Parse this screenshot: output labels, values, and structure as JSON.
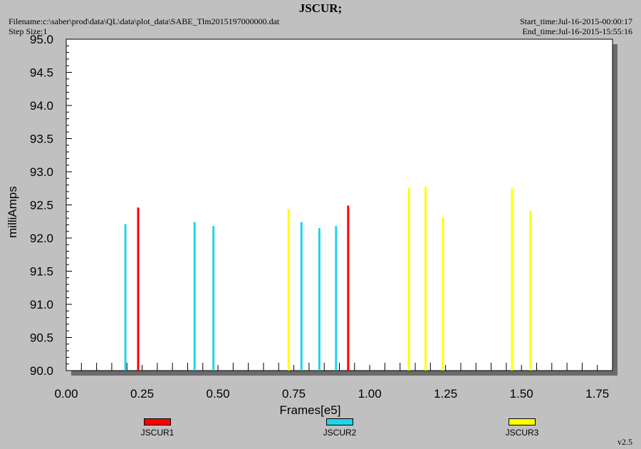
{
  "header": {
    "title": "JSCUR;",
    "filename": "Filename:c:\\saber\\prod\\data\\QL\\data\\plot_data\\SABE_Tlm2015197000000.dat",
    "step_size": "Step Size:1",
    "start_time": "Start_time:Jul-16-2015-00:00:17",
    "end_time": "End_time:Jul-16-2015-15:55:16"
  },
  "version": "v2.5",
  "chart_data": {
    "type": "bar",
    "title": "JSCUR;",
    "xlabel": "Frames[e5]",
    "ylabel": "milliAmps",
    "xlim": [
      0.0,
      1.8
    ],
    "ylim": [
      90.0,
      95.0
    ],
    "x_ticks": [
      "0.00",
      "0.25",
      "0.50",
      "0.75",
      "1.00",
      "1.25",
      "1.50",
      "1.75"
    ],
    "y_ticks": [
      "90.0",
      "90.5",
      "91.0",
      "91.5",
      "92.0",
      "92.5",
      "93.0",
      "93.5",
      "94.0",
      "94.5",
      "95.0"
    ],
    "grid": false,
    "legend_position": "bottom",
    "series": [
      {
        "name": "JSCUR1",
        "color": "#ff0000",
        "points": [
          {
            "x": 0.237,
            "y": 92.46
          },
          {
            "x": 0.929,
            "y": 92.49
          }
        ]
      },
      {
        "name": "JSCUR2",
        "color": "#22d4e6",
        "points": [
          {
            "x": 0.195,
            "y": 92.21
          },
          {
            "x": 0.423,
            "y": 92.24
          },
          {
            "x": 0.485,
            "y": 92.18
          },
          {
            "x": 0.775,
            "y": 92.24
          },
          {
            "x": 0.834,
            "y": 92.15
          },
          {
            "x": 0.889,
            "y": 92.18
          }
        ]
      },
      {
        "name": "JSCUR3",
        "color": "#ffff00",
        "points": [
          {
            "x": 0.733,
            "y": 92.44
          },
          {
            "x": 1.129,
            "y": 92.75
          },
          {
            "x": 1.184,
            "y": 92.78
          },
          {
            "x": 1.241,
            "y": 92.31
          },
          {
            "x": 1.469,
            "y": 92.75
          },
          {
            "x": 1.53,
            "y": 92.41
          }
        ]
      }
    ]
  }
}
